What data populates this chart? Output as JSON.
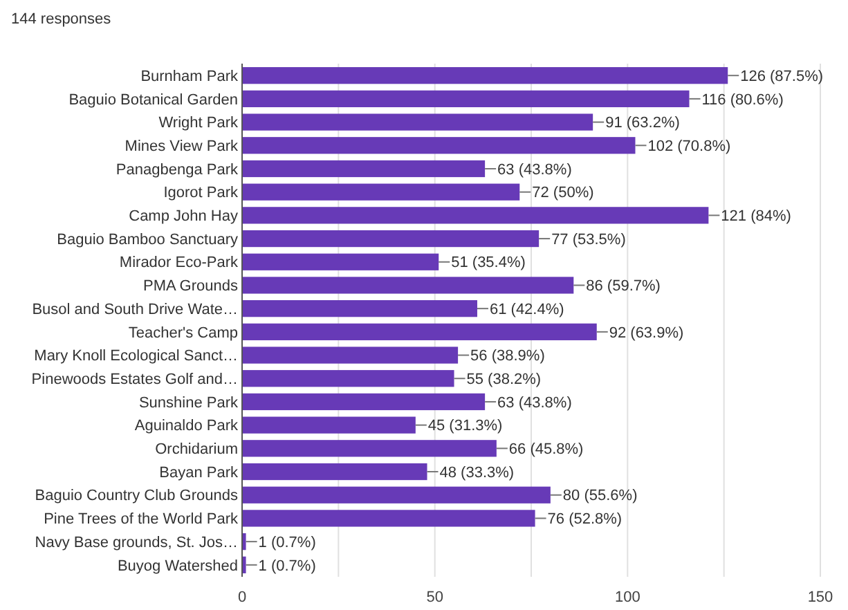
{
  "chart_data": {
    "type": "bar",
    "orientation": "horizontal",
    "title": "144 responses",
    "categories": [
      "Burnham Park",
      "Baguio Botanical Garden",
      "Wright Park",
      "Mines View Park",
      "Panagbenga Park",
      "Igorot Park",
      "Camp John Hay",
      "Baguio Bamboo Sanctuary",
      "Mirador Eco-Park",
      "PMA Grounds",
      "Busol and South Drive Wate…",
      "Teacher's Camp",
      "Mary Knoll Ecological Sanct…",
      "Pinewoods Estates Golf and…",
      "Sunshine Park",
      "Aguinaldo Park",
      "Orchidarium",
      "Bayan Park",
      "Baguio Country Club Grounds",
      "Pine Trees of the World Park",
      "Navy Base grounds, St. Jos…",
      "Buyog Watershed"
    ],
    "values": [
      126,
      116,
      91,
      102,
      63,
      72,
      121,
      77,
      51,
      86,
      61,
      92,
      56,
      55,
      63,
      45,
      66,
      48,
      80,
      76,
      1,
      1
    ],
    "value_labels": [
      "126 (87.5%)",
      "116 (80.6%)",
      "91 (63.2%)",
      "102 (70.8%)",
      "63 (43.8%)",
      "72 (50%)",
      "121 (84%)",
      "77 (53.5%)",
      "51 (35.4%)",
      "86 (59.7%)",
      "61 (42.4%)",
      "92 (63.9%)",
      "56 (38.9%)",
      "55 (38.2%)",
      "63 (43.8%)",
      "45 (31.3%)",
      "66 (45.8%)",
      "48 (33.3%)",
      "80 (55.6%)",
      "76 (52.8%)",
      "1 (0.7%)",
      "1 (0.7%)"
    ],
    "color": "#673ab7",
    "xlim": [
      0,
      150
    ],
    "xticks": [
      0,
      {
        "value": 25,
        "label": null
      },
      50,
      {
        "value": 75,
        "label": null
      },
      100,
      {
        "value": 125,
        "label": null
      },
      150
    ],
    "grid": "x"
  }
}
